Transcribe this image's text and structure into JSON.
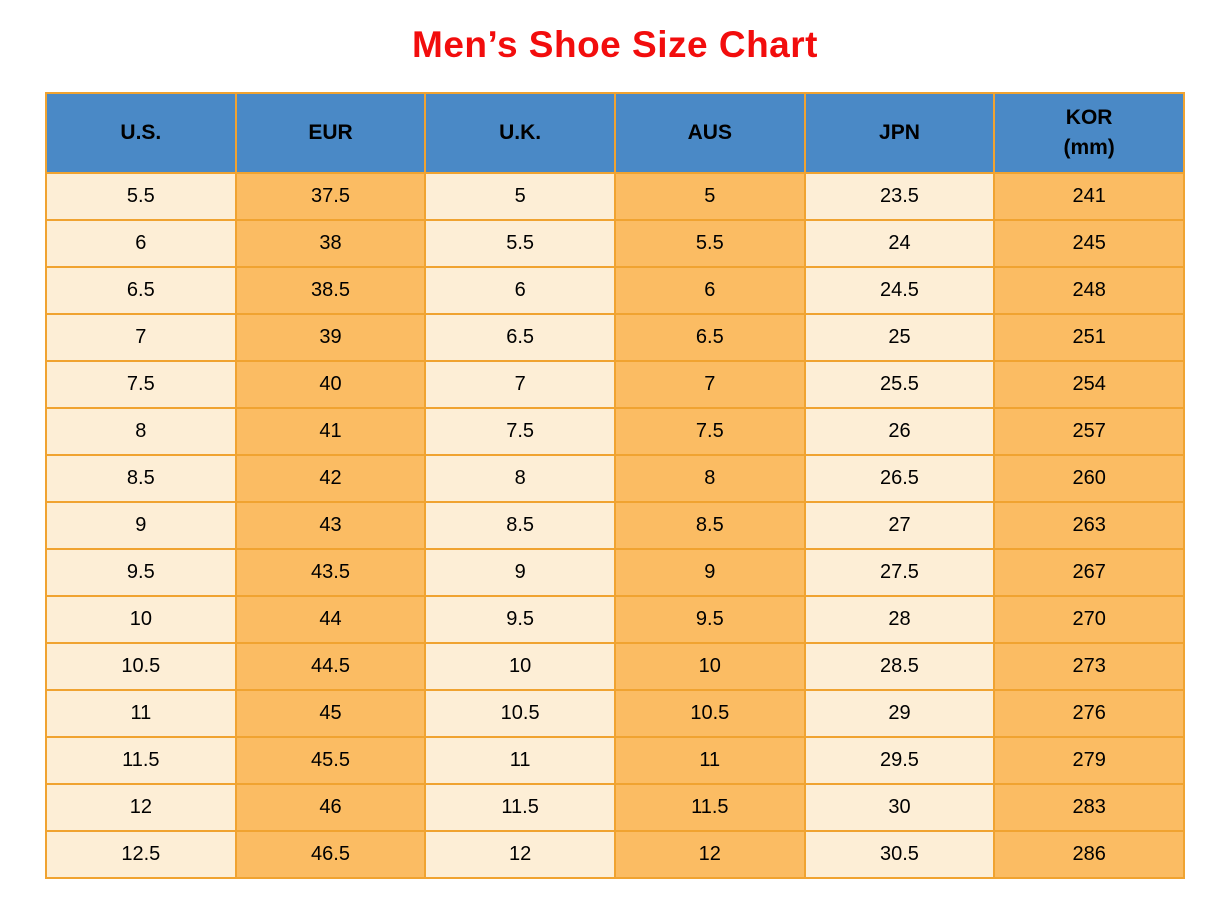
{
  "title": "Men’s Shoe Size Chart",
  "colors": {
    "title_text": "#f20d0d",
    "header_bg": "#4a89c6",
    "header_text": "#000000",
    "cell_light_bg": "#fdeed6",
    "cell_orange_bg": "#fbbc63",
    "border": "#f0a331"
  },
  "table": {
    "headers": [
      {
        "line1": "U.S."
      },
      {
        "line1": "EUR"
      },
      {
        "line1": "U.K."
      },
      {
        "line1": "AUS"
      },
      {
        "line1": "JPN"
      },
      {
        "line1": "KOR",
        "line2": "(mm)"
      }
    ],
    "column_keys": [
      "us",
      "eur",
      "uk",
      "aus",
      "jpn",
      "kor"
    ]
  },
  "chart_data": {
    "type": "table",
    "title": "Men’s Shoe Size Chart",
    "columns": [
      "U.S.",
      "EUR",
      "U.K.",
      "AUS",
      "JPN",
      "KOR (mm)"
    ],
    "rows": [
      [
        "5.5",
        "37.5",
        "5",
        "5",
        "23.5",
        "241"
      ],
      [
        "6",
        "38",
        "5.5",
        "5.5",
        "24",
        "245"
      ],
      [
        "6.5",
        "38.5",
        "6",
        "6",
        "24.5",
        "248"
      ],
      [
        "7",
        "39",
        "6.5",
        "6.5",
        "25",
        "251"
      ],
      [
        "7.5",
        "40",
        "7",
        "7",
        "25.5",
        "254"
      ],
      [
        "8",
        "41",
        "7.5",
        "7.5",
        "26",
        "257"
      ],
      [
        "8.5",
        "42",
        "8",
        "8",
        "26.5",
        "260"
      ],
      [
        "9",
        "43",
        "8.5",
        "8.5",
        "27",
        "263"
      ],
      [
        "9.5",
        "43.5",
        "9",
        "9",
        "27.5",
        "267"
      ],
      [
        "10",
        "44",
        "9.5",
        "9.5",
        "28",
        "270"
      ],
      [
        "10.5",
        "44.5",
        "10",
        "10",
        "28.5",
        "273"
      ],
      [
        "11",
        "45",
        "10.5",
        "10.5",
        "29",
        "276"
      ],
      [
        "11.5",
        "45.5",
        "11",
        "11",
        "29.5",
        "279"
      ],
      [
        "12",
        "46",
        "11.5",
        "11.5",
        "30",
        "283"
      ],
      [
        "12.5",
        "46.5",
        "12",
        "12",
        "30.5",
        "286"
      ]
    ]
  }
}
